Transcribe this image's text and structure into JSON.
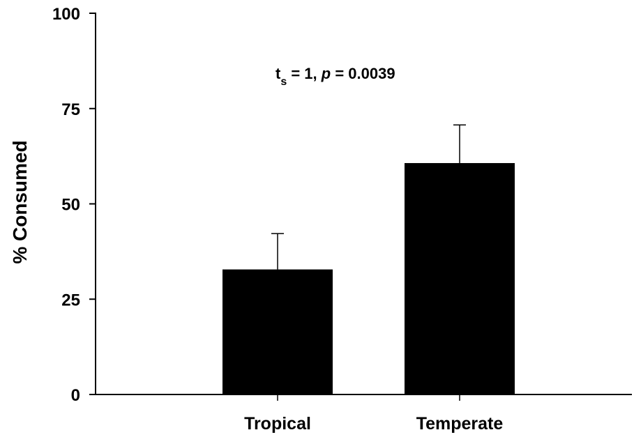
{
  "chart_data": {
    "type": "bar",
    "categories": [
      "Tropical",
      "Temperate"
    ],
    "values": [
      32.8,
      60.7
    ],
    "error_upper": [
      42.2,
      70.7
    ],
    "ylabel": "% Consumed",
    "xlabel": "",
    "ylim": [
      0,
      100
    ],
    "yticks": [
      0,
      25,
      50,
      75,
      100
    ],
    "ytick_labels": [
      "0",
      "25",
      "50",
      "75",
      "100"
    ],
    "grid": false,
    "bar_color": "#000000",
    "annotation": {
      "t": "t",
      "sub": "s",
      "eq1": " = 1, ",
      "p": "p",
      "eq2": " = 0.0039"
    }
  }
}
